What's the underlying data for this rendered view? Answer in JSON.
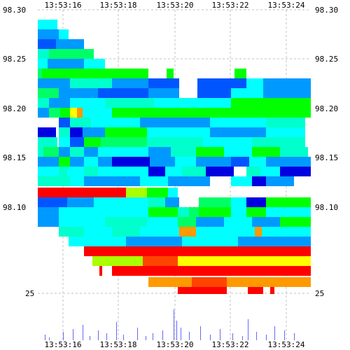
{
  "chart_data": {
    "type": "heatmap",
    "title": "",
    "xlabel": "",
    "ylabel": "",
    "x_ticks": [
      "13:53:16",
      "13:53:18",
      "13:53:20",
      "13:53:22",
      "13:53:24"
    ],
    "y_ticks": [
      "98.30",
      "98.25",
      "98.20",
      "98.15",
      "98.10"
    ],
    "volume_tick": "25",
    "price_range": [
      98.07,
      98.3
    ],
    "colors": {
      "dark_blue": "#0000e0",
      "blue": "#0055ff",
      "azure": "#0099ff",
      "cyan": "#00ffff",
      "teal": "#00ffcc",
      "green": "#00ff66",
      "bright_green": "#00ff00",
      "green_yellow": "#aaff00",
      "yellow": "#ffff00",
      "orange": "#ff9900",
      "red_orange": "#ff4400",
      "red": "#ff0000",
      "grid": "#c0c0c0",
      "volume_bar": "#6666ff"
    },
    "grid": true
  }
}
